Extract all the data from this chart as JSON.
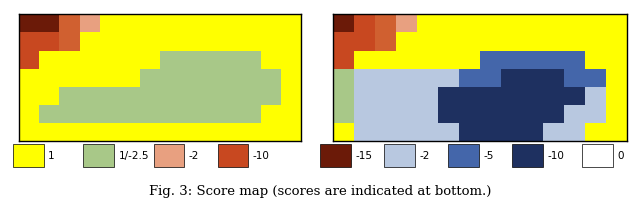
{
  "title": "Fig. 3: Score map (scores are indicated at bottom.)",
  "legend1": [
    {
      "color": "#FFFF00",
      "label": "1"
    },
    {
      "color": "#A8C888",
      "label": "1/-2.5"
    },
    {
      "color": "#E8A080",
      "label": "-2"
    },
    {
      "color": "#C84820",
      "label": "-10"
    }
  ],
  "legend2": [
    {
      "color": "#6B1A08",
      "label": "-15"
    },
    {
      "color": "#B8C8E0",
      "label": "-2"
    },
    {
      "color": "#4466AA",
      "label": "-5"
    },
    {
      "color": "#1E3060",
      "label": "-10"
    },
    {
      "color": "#FFFFFF",
      "label": "0"
    }
  ],
  "grid_rows": 7,
  "grid_cols": 14,
  "left_grid": [
    [
      9,
      9,
      7,
      6,
      0,
      0,
      0,
      0,
      0,
      0,
      0,
      0,
      0,
      0
    ],
    [
      8,
      8,
      7,
      0,
      0,
      0,
      0,
      0,
      0,
      0,
      0,
      0,
      0,
      0
    ],
    [
      8,
      0,
      0,
      0,
      0,
      0,
      0,
      1,
      1,
      1,
      1,
      1,
      0,
      0
    ],
    [
      0,
      0,
      0,
      0,
      0,
      0,
      1,
      1,
      1,
      1,
      1,
      1,
      1,
      0
    ],
    [
      0,
      0,
      1,
      1,
      1,
      1,
      1,
      1,
      1,
      1,
      1,
      1,
      1,
      0
    ],
    [
      0,
      1,
      1,
      1,
      1,
      1,
      1,
      1,
      1,
      1,
      1,
      1,
      0,
      0
    ],
    [
      0,
      0,
      0,
      0,
      0,
      0,
      0,
      0,
      0,
      0,
      0,
      0,
      0,
      0
    ]
  ],
  "right_grid": [
    [
      9,
      8,
      7,
      6,
      0,
      0,
      0,
      0,
      0,
      0,
      0,
      0,
      0,
      0
    ],
    [
      8,
      8,
      7,
      0,
      0,
      0,
      0,
      0,
      0,
      0,
      0,
      0,
      0,
      0
    ],
    [
      8,
      0,
      0,
      0,
      0,
      0,
      0,
      3,
      3,
      3,
      3,
      3,
      0,
      0
    ],
    [
      1,
      2,
      2,
      2,
      2,
      2,
      3,
      3,
      4,
      4,
      4,
      3,
      3,
      0
    ],
    [
      1,
      2,
      2,
      2,
      2,
      4,
      4,
      4,
      4,
      4,
      4,
      4,
      2,
      0
    ],
    [
      1,
      2,
      2,
      2,
      2,
      4,
      4,
      4,
      4,
      4,
      4,
      2,
      2,
      0
    ],
    [
      0,
      2,
      2,
      2,
      2,
      2,
      4,
      4,
      4,
      4,
      2,
      2,
      0,
      0
    ]
  ],
  "color_map": {
    "0": "#FFFF00",
    "1": "#A8C888",
    "2": "#B8C8E0",
    "3": "#4466AA",
    "4": "#1E3060",
    "5": "#FFFFFF",
    "6": "#E8A080",
    "7": "#D06030",
    "8": "#C84820",
    "9": "#6B1A08"
  },
  "fig_width": 6.4,
  "fig_height": 2.02,
  "dpi": 100
}
